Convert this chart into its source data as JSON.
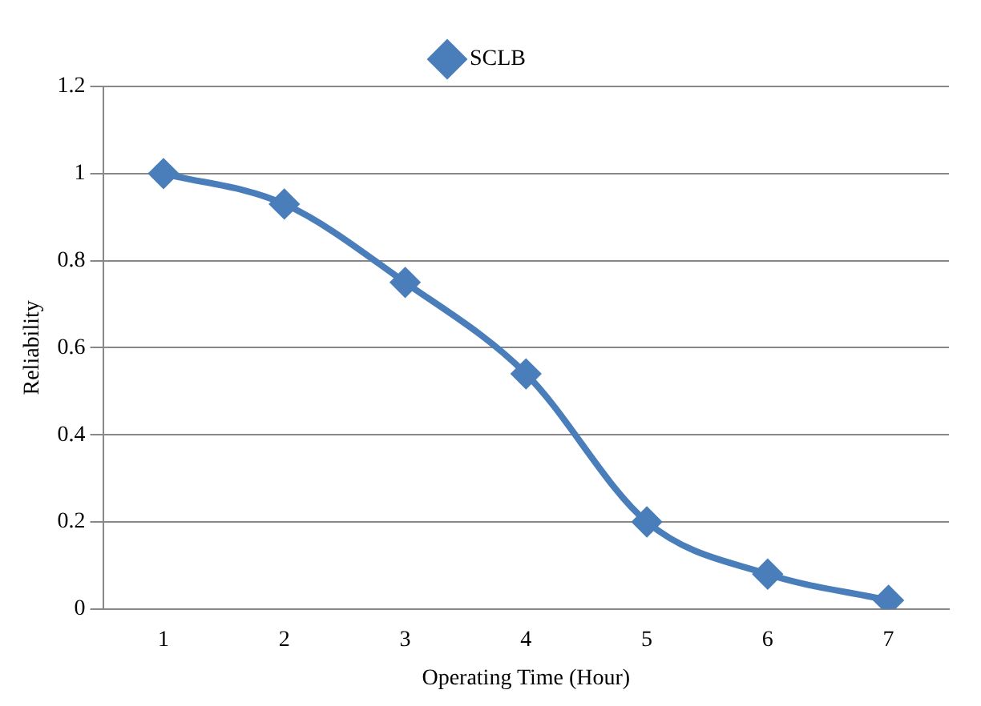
{
  "chart_data": {
    "type": "line",
    "xlabel": "Operating Time (Hour)",
    "ylabel": "Reliability",
    "categories": [
      "1",
      "2",
      "3",
      "4",
      "5",
      "6",
      "7"
    ],
    "series": [
      {
        "name": "SCLB",
        "color": "#4a7ebb",
        "values": [
          1.0,
          0.93,
          0.75,
          0.54,
          0.2,
          0.08,
          0.02
        ]
      }
    ],
    "ylim": [
      0,
      1.2
    ],
    "yticks": [
      0,
      0.2,
      0.4,
      0.6,
      0.8,
      1,
      1.2
    ],
    "grid": "y",
    "legend": "top",
    "marker": "diamond"
  }
}
